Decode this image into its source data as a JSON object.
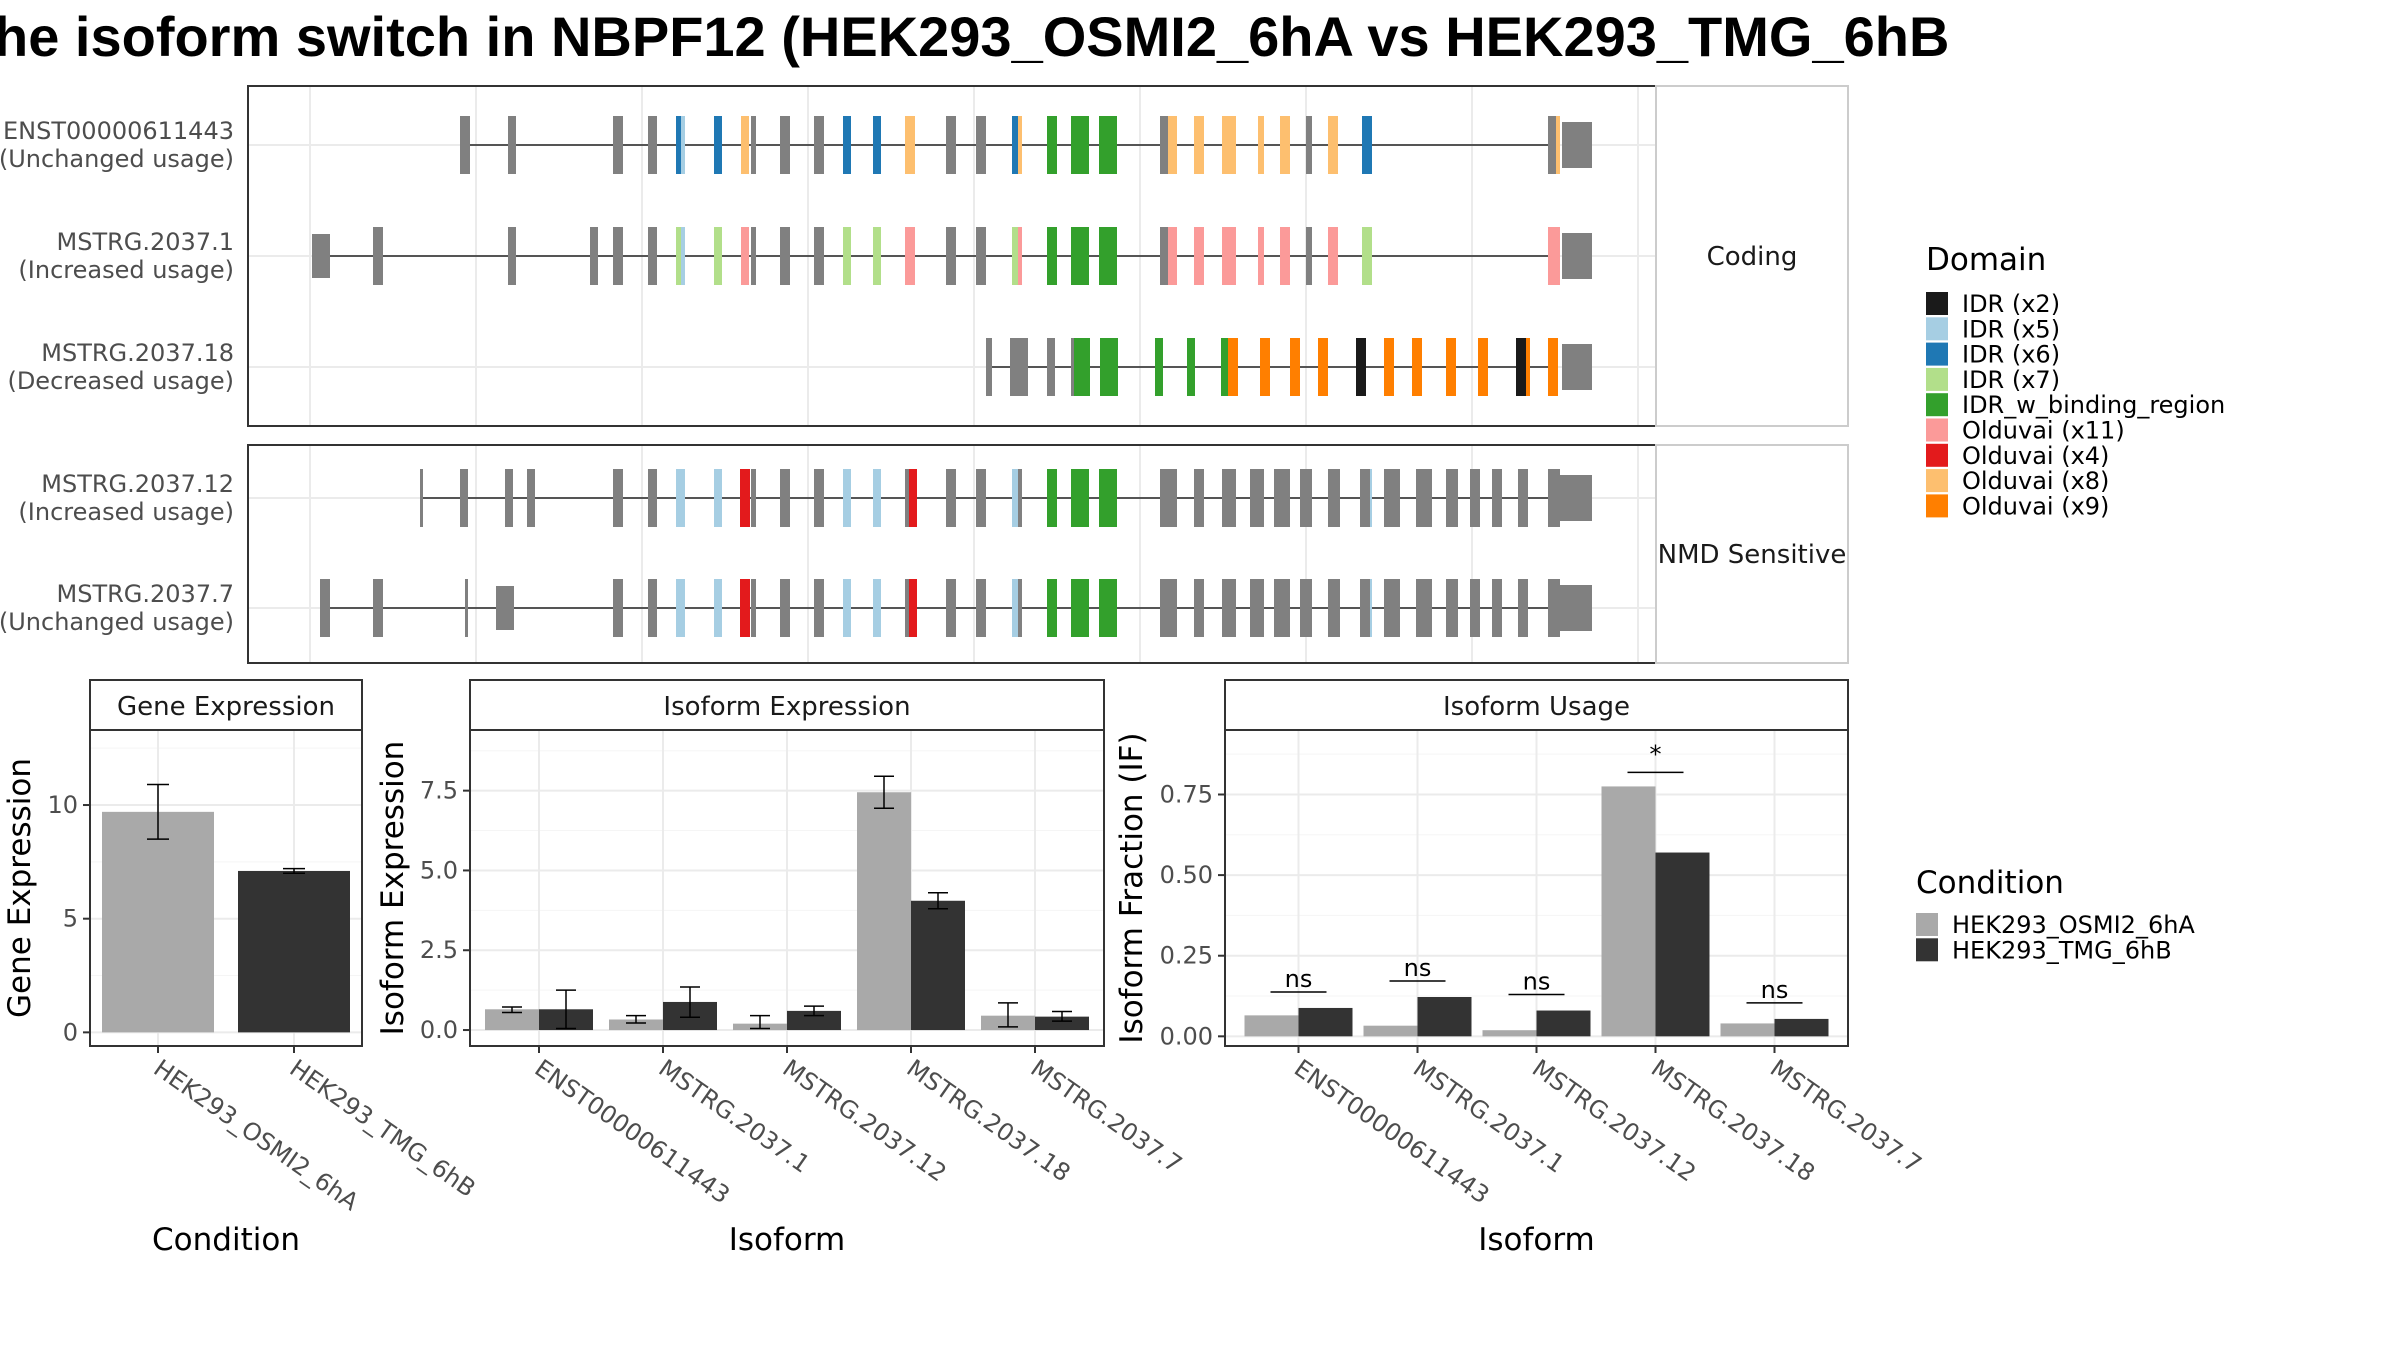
{
  "title": "he isoform switch in NBPF12 (HEK293_OSMI2_6hA vs HEK293_TMG_6hB",
  "colors": {
    "intron": "#555555",
    "exon_default": "#808080",
    "cond1": "#a9a9a9",
    "cond2": "#333333",
    "panel_border": "#333333",
    "grid": "#ebebeb"
  },
  "structure": {
    "categories": [
      {
        "label": "Coding",
        "isoforms": [
          "ENST00000611443",
          "MSTRG.2037.1",
          "MSTRG.2037.18"
        ]
      },
      {
        "label": "NMD Sensitive",
        "isoforms": [
          "MSTRG.2037.12",
          "MSTRG.2037.7"
        ]
      }
    ],
    "isoforms": [
      {
        "id": "ENST00000611443",
        "line1": "ENST00000611443",
        "line2": "(Unchanged usage)"
      },
      {
        "id": "MSTRG.2037.1",
        "line1": "MSTRG.2037.1",
        "line2": "(Increased usage)"
      },
      {
        "id": "MSTRG.2037.18",
        "line1": "MSTRG.2037.18",
        "line2": "(Decreased usage)"
      },
      {
        "id": "MSTRG.2037.12",
        "line1": "MSTRG.2037.12",
        "line2": "(Increased usage)"
      },
      {
        "id": "MSTRG.2037.7",
        "line1": "MSTRG.2037.7",
        "line2": "(Unchanged usage)"
      }
    ]
  },
  "domain_legend": {
    "title": "Domain",
    "items": [
      {
        "label": "IDR (x2)",
        "color": "#1a1a1a"
      },
      {
        "label": "IDR (x5)",
        "color": "#a6cee3"
      },
      {
        "label": "IDR (x6)",
        "color": "#1f78b4"
      },
      {
        "label": "IDR (x7)",
        "color": "#b2df8a"
      },
      {
        "label": "IDR_w_binding_region",
        "color": "#33a02c"
      },
      {
        "label": "Olduvai (x11)",
        "color": "#fb9a99"
      },
      {
        "label": "Olduvai (x4)",
        "color": "#e31a1c"
      },
      {
        "label": "Olduvai (x8)",
        "color": "#fdbf6f"
      },
      {
        "label": "Olduvai (x9)",
        "color": "#ff7f00"
      }
    ]
  },
  "condition_legend": {
    "title": "Condition",
    "items": [
      {
        "label": "HEK293_OSMI2_6hA",
        "color": "#a9a9a9"
      },
      {
        "label": "HEK293_TMG_6hB",
        "color": "#333333"
      }
    ]
  },
  "chart_data": [
    {
      "type": "bar",
      "title": "Gene Expression",
      "xlabel": "Condition",
      "ylabel": "Gene Expression",
      "categories": [
        "HEK293_OSMI2_6hA",
        "HEK293_TMG_6hB"
      ],
      "values": [
        9.7,
        7.1
      ],
      "error_low": [
        8.5,
        7.0
      ],
      "error_high": [
        10.9,
        7.2
      ],
      "ylim": [
        -0.6,
        13.3
      ],
      "yticks": [
        0,
        5,
        10
      ],
      "ytick_labels": [
        "0",
        "5",
        "10"
      ],
      "grid": true
    },
    {
      "type": "bar",
      "title": "Isoform Expression",
      "xlabel": "Isoform",
      "ylabel": "Isoform Expression",
      "categories": [
        "ENST00000611443",
        "MSTRG.2037.1",
        "MSTRG.2037.12",
        "MSTRG.2037.18",
        "MSTRG.2037.7"
      ],
      "series": [
        {
          "name": "HEK293_OSMI2_6hA",
          "values": [
            0.65,
            0.33,
            0.2,
            7.45,
            0.45
          ],
          "error_low": [
            0.55,
            0.22,
            0.05,
            6.95,
            0.1
          ],
          "error_high": [
            0.72,
            0.45,
            0.45,
            7.95,
            0.85
          ]
        },
        {
          "name": "HEK293_TMG_6hB",
          "values": [
            0.65,
            0.88,
            0.6,
            4.05,
            0.42
          ],
          "error_low": [
            0.05,
            0.4,
            0.45,
            3.8,
            0.28
          ],
          "error_high": [
            1.25,
            1.35,
            0.75,
            4.3,
            0.58
          ]
        }
      ],
      "ylim": [
        -0.5,
        9.4
      ],
      "yticks": [
        0,
        2.5,
        5,
        7.5
      ],
      "ytick_labels": [
        "0.0",
        "2.5",
        "5.0",
        "7.5"
      ],
      "grid": true
    },
    {
      "type": "bar",
      "title": "Isoform Usage",
      "xlabel": "Isoform",
      "ylabel": "Isoform Fraction (IF)",
      "categories": [
        "ENST00000611443",
        "MSTRG.2037.1",
        "MSTRG.2037.12",
        "MSTRG.2037.18",
        "MSTRG.2037.7"
      ],
      "series": [
        {
          "name": "HEK293_OSMI2_6hA",
          "values": [
            0.065,
            0.033,
            0.019,
            0.775,
            0.04
          ]
        },
        {
          "name": "HEK293_TMG_6hB",
          "values": [
            0.088,
            0.122,
            0.08,
            0.57,
            0.054
          ]
        }
      ],
      "significance": [
        "ns",
        "ns",
        "ns",
        "*",
        "ns"
      ],
      "ylim": [
        -0.03,
        0.95
      ],
      "yticks": [
        0,
        0.25,
        0.5,
        0.75
      ],
      "ytick_labels": [
        "0.00",
        "0.25",
        "0.50",
        "0.75"
      ],
      "grid": true
    }
  ]
}
